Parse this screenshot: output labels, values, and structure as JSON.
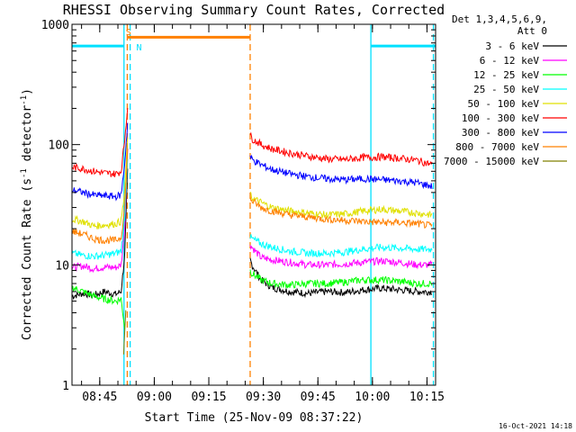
{
  "chart_data": {
    "type": "line",
    "title": "RHESSI Observing Summary Count Rates, Corrected",
    "xlabel": "Start Time (25-Nov-09 08:37:22)",
    "ylabel_parts": [
      "Corrected Count Rate (s",
      "-1",
      " detector",
      "-1",
      ")"
    ],
    "y_scale": "log",
    "ylim": [
      1,
      1000
    ],
    "xlim_minutes": [
      0,
      100
    ],
    "x_ticks": [
      {
        "label": "08:45",
        "minute": 7.63
      },
      {
        "label": "09:00",
        "minute": 22.63
      },
      {
        "label": "09:15",
        "minute": 37.63
      },
      {
        "label": "09:30",
        "minute": 52.63
      },
      {
        "label": "09:45",
        "minute": 67.63
      },
      {
        "label": "10:00",
        "minute": 82.63
      },
      {
        "label": "10:15",
        "minute": 97.63
      }
    ],
    "y_ticks": [
      {
        "label": "1",
        "value": 1
      },
      {
        "label": "10",
        "value": 10
      },
      {
        "label": "100",
        "value": 100
      },
      {
        "label": "1000",
        "value": 1000
      }
    ],
    "legend_header": [
      "Det 1,3,4,5,6,9,",
      "Att 0"
    ],
    "legend_position": "right, outside plot",
    "series": [
      {
        "name": "3 - 6 keV",
        "color": "#000000",
        "segments": [
          {
            "x": [
              0,
              3,
              6,
              9,
              12,
              13.5,
              14.5,
              15.3
            ],
            "y": [
              5.5,
              5.8,
              5.6,
              6,
              5.7,
              6,
              12,
              60
            ]
          },
          {
            "x": [
              49,
              49.5,
              52,
              55,
              60,
              65,
              70,
              75,
              80,
              85,
              90,
              95,
              99
            ],
            "y": [
              11,
              10,
              7.5,
              6.5,
              6,
              5.8,
              6,
              5.9,
              6.2,
              6.4,
              6.2,
              6,
              6
            ]
          }
        ]
      },
      {
        "name": "6 - 12 keV",
        "color": "#ff00ff",
        "segments": [
          {
            "x": [
              0,
              3,
              6,
              9,
              12,
              13.5,
              14.5,
              15.3
            ],
            "y": [
              9.5,
              9.8,
              9.3,
              9.6,
              9.5,
              10,
              20,
              90
            ]
          },
          {
            "x": [
              49,
              49.5,
              52,
              55,
              60,
              65,
              70,
              75,
              80,
              85,
              90,
              95,
              99
            ],
            "y": [
              15,
              14,
              11.5,
              11,
              10.5,
              10,
              10,
              10.2,
              10.5,
              10.8,
              10.5,
              10,
              10
            ]
          }
        ]
      },
      {
        "name": "12 - 25 keV",
        "color": "#00ff00",
        "segments": [
          {
            "x": [
              0,
              3,
              6,
              9,
              12,
              13.5,
              14.5
            ],
            "y": [
              6.5,
              6,
              5.5,
              5.2,
              5,
              5.2,
              3
            ]
          },
          {
            "x": [
              49,
              49.5,
              52,
              55,
              60,
              65,
              70,
              75,
              80,
              85,
              90,
              95,
              99
            ],
            "y": [
              9,
              8.5,
              7.5,
              7,
              6.8,
              7,
              7,
              7.2,
              7.5,
              7.5,
              7.3,
              7,
              7
            ]
          }
        ]
      },
      {
        "name": "25 - 50 keV",
        "color": "#00ffff",
        "segments": [
          {
            "x": [
              0,
              3,
              6,
              9,
              12,
              13.5,
              14.5,
              15.3
            ],
            "y": [
              12.5,
              12,
              11.8,
              12,
              12.5,
              13,
              25,
              80
            ]
          },
          {
            "x": [
              49,
              49.5,
              52,
              55,
              60,
              65,
              70,
              75,
              80,
              85,
              90,
              95,
              99
            ],
            "y": [
              17,
              16.5,
              15,
              14,
              13,
              12.5,
              12.5,
              12.8,
              13.5,
              14,
              13.8,
              13.5,
              13.5
            ]
          }
        ]
      },
      {
        "name": "50 - 100 keV",
        "color": "#e0e000",
        "segments": [
          {
            "x": [
              0,
              3,
              6,
              9,
              12,
              13.5,
              14.5,
              15.3
            ],
            "y": [
              24,
              23,
              21,
              21.5,
              22,
              23,
              40,
              120
            ]
          },
          {
            "x": [
              49,
              49.5,
              52,
              55,
              60,
              65,
              70,
              75,
              80,
              85,
              90,
              95,
              99
            ],
            "y": [
              38,
              36,
              33,
              30,
              28,
              27,
              26,
              26.5,
              28,
              29,
              28,
              27,
              26
            ]
          }
        ]
      },
      {
        "name": "100 - 300 keV",
        "color": "#ff0000",
        "segments": [
          {
            "x": [
              0,
              3,
              6,
              9,
              12,
              13.5,
              14.5,
              15.3
            ],
            "y": [
              65,
              63,
              60,
              58,
              57,
              60,
              110,
              210
            ]
          },
          {
            "x": [
              49,
              49.5,
              52,
              55,
              60,
              65,
              70,
              75,
              80,
              85,
              90,
              95,
              99
            ],
            "y": [
              120,
              112,
              100,
              92,
              85,
              80,
              76,
              75,
              78,
              79,
              77,
              74,
              68
            ]
          }
        ]
      },
      {
        "name": "300 - 800 keV",
        "color": "#0000ff",
        "segments": [
          {
            "x": [
              0,
              3,
              6,
              9,
              12,
              13.5,
              14.5,
              15.3
            ],
            "y": [
              42,
              40,
              38,
              37.5,
              37,
              38,
              70,
              150
            ]
          },
          {
            "x": [
              49,
              49.5,
              52,
              55,
              60,
              65,
              70,
              75,
              80,
              85,
              90,
              95,
              99
            ],
            "y": [
              80,
              75,
              68,
              62,
              57,
              54,
              52,
              51,
              52,
              51,
              50,
              48,
              45
            ]
          }
        ]
      },
      {
        "name": "800 - 7000 keV",
        "color": "#ff8000",
        "segments": [
          {
            "x": [
              0,
              3,
              6,
              9,
              12,
              13.5,
              14.5,
              15.3
            ],
            "y": [
              19,
              18,
              16.5,
              16,
              16,
              17,
              30,
              90
            ]
          },
          {
            "x": [
              49,
              49.5,
              52,
              55,
              60,
              65,
              70,
              75,
              80,
              85,
              90,
              95,
              99
            ],
            "y": [
              36,
              34,
              30,
              28,
              26,
              25,
              24,
              23.5,
              23,
              22.5,
              22.5,
              22,
              21
            ]
          }
        ]
      },
      {
        "name": "7000 - 15000 keV",
        "color": "#808000",
        "segments": [
          {
            "x": [
              14.2,
              14.5,
              14.8
            ],
            "y": [
              1.8,
              2.8,
              4.2
            ]
          }
        ]
      }
    ],
    "flags": [
      {
        "label": "S",
        "color": "#ff8000",
        "value": 780,
        "x_start": 15.2,
        "x_end": 49,
        "label_x": 14.3,
        "label_y": 870
      },
      {
        "label": "N",
        "color": "#00e0ff",
        "value": 660,
        "segments": [
          [
            0,
            14.3
          ],
          [
            82.2,
            100
          ]
        ],
        "label_x": 17.2,
        "label_y": 650
      }
    ],
    "vertical_markers": [
      {
        "x": 14.3,
        "color": "#00e0ff",
        "style": "solid"
      },
      {
        "x": 15.2,
        "color": "#ff8000",
        "style": "dashed"
      },
      {
        "x": 16.0,
        "color": "#00e0ff",
        "style": "dashed"
      },
      {
        "x": 49.0,
        "color": "#ff8000",
        "style": "dashed"
      },
      {
        "x": 82.2,
        "color": "#00e0ff",
        "style": "solid"
      },
      {
        "x": 99.4,
        "color": "#00e0ff",
        "style": "dashed"
      }
    ],
    "footer_timestamp": "16-Oct-2021 14:18"
  }
}
